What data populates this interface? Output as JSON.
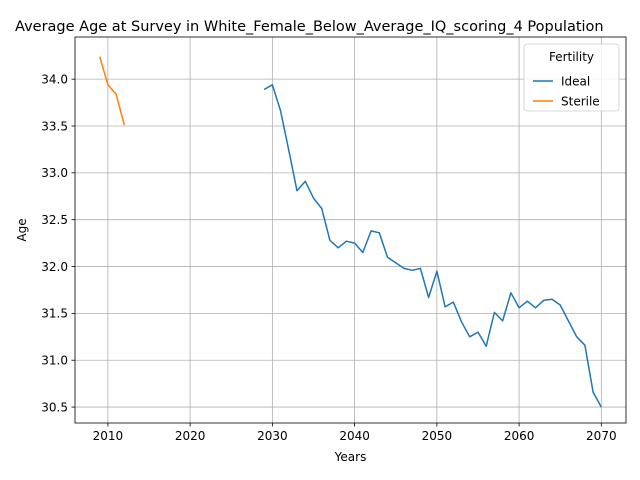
{
  "chart_data": {
    "type": "line",
    "title": "Average Age at Survey in White_Female_Below_Average_IQ_scoring_4 Population",
    "xlabel": "Years",
    "ylabel": "Age",
    "xlim": [
      2006,
      2073
    ],
    "ylim": [
      30.33,
      34.45
    ],
    "x_ticks": [
      2010,
      2020,
      2030,
      2040,
      2050,
      2060,
      2070
    ],
    "y_ticks": [
      30.5,
      31.0,
      31.5,
      32.0,
      32.5,
      33.0,
      33.5,
      34.0
    ],
    "grid": true,
    "legend": {
      "title": "Fertility",
      "placement": "top-right"
    },
    "series": [
      {
        "name": "Ideal",
        "color": "#1f77b4",
        "x": [
          2029,
          2030,
          2031,
          2032,
          2033,
          2034,
          2035,
          2036,
          2037,
          2038,
          2039,
          2040,
          2041,
          2042,
          2043,
          2044,
          2045,
          2046,
          2047,
          2048,
          2049,
          2050,
          2051,
          2052,
          2053,
          2054,
          2055,
          2056,
          2057,
          2058,
          2059,
          2060,
          2061,
          2062,
          2063,
          2064,
          2065,
          2066,
          2067,
          2068,
          2069,
          2070
        ],
        "y": [
          33.89,
          33.94,
          33.66,
          33.24,
          32.81,
          32.91,
          32.73,
          32.62,
          32.28,
          32.2,
          32.27,
          32.25,
          32.15,
          32.38,
          32.36,
          32.1,
          32.04,
          31.98,
          31.96,
          31.98,
          31.67,
          31.95,
          31.57,
          31.62,
          31.41,
          31.25,
          31.3,
          31.15,
          31.51,
          31.42,
          31.72,
          31.56,
          31.63,
          31.56,
          31.64,
          31.65,
          31.59,
          31.42,
          31.25,
          31.16,
          30.66,
          30.5
        ]
      },
      {
        "name": "Sterile",
        "color": "#ff7f0e",
        "x": [
          2009,
          2010,
          2011,
          2012
        ],
        "y": [
          34.24,
          33.94,
          33.84,
          33.51
        ]
      }
    ]
  }
}
